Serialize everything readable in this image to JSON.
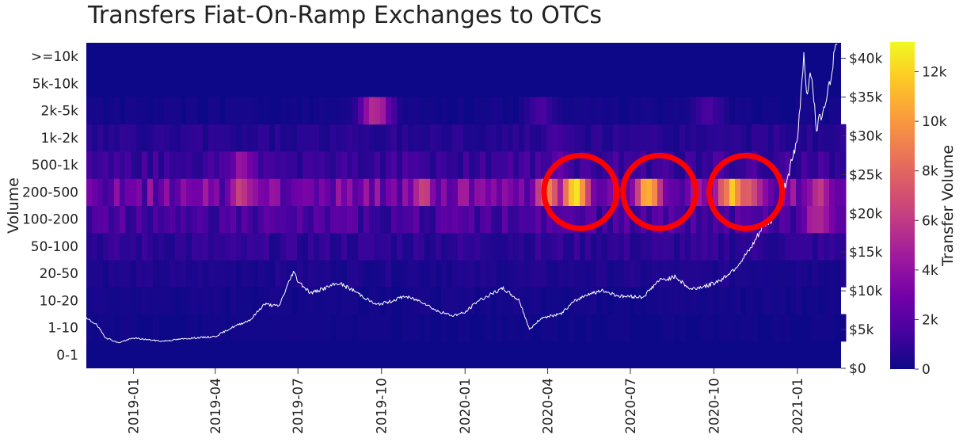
{
  "chart_data": {
    "type": "heatmap",
    "title": "Transfers Fiat-On-Ramp Exchanges to OTCs",
    "ylabel": "Volume",
    "y2label": "",
    "colorbar_label": "Transfer Volume",
    "colorscale": "plasma",
    "y_categories": [
      "0-1",
      "1-10",
      "10-20",
      "20-50",
      "50-100",
      "100-200",
      "200-500",
      "500-1k",
      "1k-2k",
      "2k-5k",
      "5k-10k",
      ">=10k"
    ],
    "x_range": [
      "2018-11-10",
      "2021-02-18"
    ],
    "x_ticks": [
      "2019-01",
      "2019-04",
      "2019-07",
      "2019-10",
      "2020-01",
      "2020-04",
      "2020-07",
      "2020-10",
      "2021-01"
    ],
    "y2_ticks": [
      "$0",
      "$5k",
      "$10k",
      "$15k",
      "$20k",
      "$25k",
      "$30k",
      "$35k",
      "$40k"
    ],
    "y2_range": [
      0,
      42000
    ],
    "colorbar_ticks": [
      "0",
      "2k",
      "4k",
      "6k",
      "8k",
      "10k",
      "12k"
    ],
    "colorbar_range": [
      0,
      13200
    ],
    "heatmap_rows": {
      "200-500": {
        "base": 3200,
        "peaks": [
          {
            "date": "2019-05-01",
            "value": 7500
          },
          {
            "date": "2019-07-01",
            "value": 3500
          },
          {
            "date": "2019-11-15",
            "value": 6500
          },
          {
            "date": "2020-04-01",
            "value": 9000
          },
          {
            "date": "2020-05-01",
            "value": 12500
          },
          {
            "date": "2020-07-20",
            "value": 12000
          },
          {
            "date": "2020-10-20",
            "value": 12000
          },
          {
            "date": "2020-11-10",
            "value": 9000
          },
          {
            "date": "2021-01-25",
            "value": 6000
          }
        ]
      },
      "100-200": {
        "base": 1700,
        "peaks": [
          {
            "date": "2020-04-20",
            "value": 2600
          },
          {
            "date": "2021-01-25",
            "value": 6500
          }
        ]
      },
      "500-1k": {
        "base": 1300,
        "peaks": [
          {
            "date": "2019-05-01",
            "value": 4500
          },
          {
            "date": "2020-04-15",
            "value": 2600
          }
        ]
      },
      "1k-2k": {
        "base": 700,
        "peaks": [
          {
            "date": "2020-04-10",
            "value": 1800
          }
        ]
      },
      "2k-5k": {
        "base": 200,
        "peaks": [
          {
            "date": "2019-09-25",
            "value": 5500
          },
          {
            "date": "2020-03-25",
            "value": 1600
          },
          {
            "date": "2020-09-25",
            "value": 1600
          }
        ]
      },
      "50-100": {
        "base": 900,
        "peaks": []
      },
      "20-50": {
        "base": 450,
        "peaks": []
      },
      "10-20": {
        "base": 250,
        "peaks": []
      },
      "1-10": {
        "base": 150,
        "peaks": []
      },
      "0-1": {
        "base": 50,
        "peaks": []
      },
      "5k-10k": {
        "base": 0,
        "peaks": []
      },
      ">=10k": {
        "base": 0,
        "peaks": []
      }
    },
    "price_series": {
      "name": "",
      "color": "#ffffff",
      "points": [
        [
          "2018-11-10",
          6400
        ],
        [
          "2018-11-20",
          5800
        ],
        [
          "2018-12-01",
          4000
        ],
        [
          "2018-12-15",
          3300
        ],
        [
          "2019-01-01",
          3900
        ],
        [
          "2019-02-01",
          3500
        ],
        [
          "2019-03-01",
          3850
        ],
        [
          "2019-04-01",
          4100
        ],
        [
          "2019-04-20",
          5300
        ],
        [
          "2019-05-10",
          6300
        ],
        [
          "2019-05-25",
          8300
        ],
        [
          "2019-06-10",
          8000
        ],
        [
          "2019-06-26",
          12500
        ],
        [
          "2019-07-01",
          11300
        ],
        [
          "2019-07-15",
          9700
        ],
        [
          "2019-08-01",
          10400
        ],
        [
          "2019-08-15",
          11000
        ],
        [
          "2019-09-01",
          10000
        ],
        [
          "2019-09-25",
          8200
        ],
        [
          "2019-10-10",
          8600
        ],
        [
          "2019-10-26",
          9300
        ],
        [
          "2019-11-15",
          8600
        ],
        [
          "2019-12-01",
          7400
        ],
        [
          "2019-12-18",
          6800
        ],
        [
          "2020-01-01",
          7200
        ],
        [
          "2020-01-15",
          8700
        ],
        [
          "2020-02-12",
          10300
        ],
        [
          "2020-03-01",
          8700
        ],
        [
          "2020-03-12",
          5000
        ],
        [
          "2020-03-25",
          6500
        ],
        [
          "2020-04-15",
          7000
        ],
        [
          "2020-04-30",
          8600
        ],
        [
          "2020-05-15",
          9600
        ],
        [
          "2020-06-01",
          10000
        ],
        [
          "2020-06-20",
          9300
        ],
        [
          "2020-07-15",
          9200
        ],
        [
          "2020-08-01",
          11300
        ],
        [
          "2020-08-20",
          11800
        ],
        [
          "2020-09-05",
          10200
        ],
        [
          "2020-09-25",
          10700
        ],
        [
          "2020-10-10",
          11500
        ],
        [
          "2020-10-25",
          13000
        ],
        [
          "2020-11-10",
          15300
        ],
        [
          "2020-11-25",
          18500
        ],
        [
          "2020-12-05",
          19200
        ],
        [
          "2020-12-17",
          23000
        ],
        [
          "2021-01-01",
          29300
        ],
        [
          "2021-01-08",
          40500
        ],
        [
          "2021-01-12",
          35000
        ],
        [
          "2021-01-15",
          39000
        ],
        [
          "2021-01-22",
          31000
        ],
        [
          "2021-01-28",
          33000
        ],
        [
          "2021-02-08",
          38000
        ],
        [
          "2021-02-15",
          47000
        ]
      ]
    },
    "annotations": [
      {
        "shape": "circle",
        "color": "#ff0000",
        "date": "2020-05-07",
        "row": "200-500"
      },
      {
        "shape": "circle",
        "color": "#ff0000",
        "date": "2020-08-02",
        "row": "200-500"
      },
      {
        "shape": "circle",
        "color": "#ff0000",
        "date": "2020-11-05",
        "row": "200-500"
      }
    ]
  }
}
